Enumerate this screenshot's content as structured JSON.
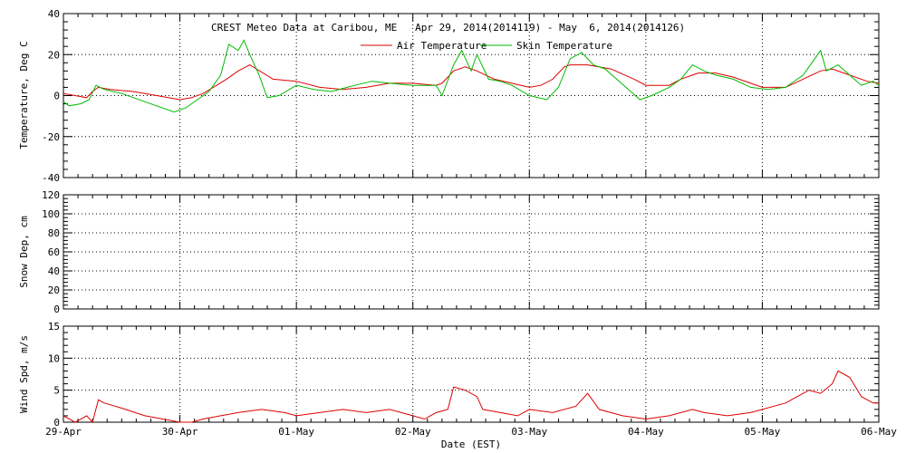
{
  "chart_data": [
    {
      "type": "line",
      "title": "CREST Meteo Data at Caribou, ME   Apr 29, 2014(2014119) - May  6, 2014(2014126)",
      "ylabel": "Temperature, Deg C",
      "ylim": [
        -40,
        40
      ],
      "yticks": [
        "-40",
        "-20",
        "0",
        "20",
        "40"
      ],
      "legend_position": "top-center",
      "colors": {
        "Air Temperature": "#dd0000",
        "Skin Temperature": "#00bb00"
      },
      "x_unit": "day offset from 29-Apr 00:00 EST",
      "series": [
        {
          "name": "Air Temperature",
          "x": [
            0,
            0.1,
            0.2,
            0.25,
            0.3,
            0.4,
            0.6,
            0.8,
            1.0,
            1.1,
            1.2,
            1.4,
            1.5,
            1.6,
            1.8,
            2.0,
            2.2,
            2.4,
            2.6,
            2.8,
            3.0,
            3.2,
            3.25,
            3.35,
            3.45,
            3.55,
            3.7,
            3.85,
            4.0,
            4.1,
            4.2,
            4.3,
            4.35,
            4.5,
            4.7,
            4.9,
            5.0,
            5.2,
            5.3,
            5.45,
            5.6,
            5.75,
            5.9,
            6.0,
            6.2,
            6.35,
            6.5,
            6.6,
            6.75,
            6.9,
            7.0
          ],
          "y": [
            1,
            0,
            -1,
            2,
            4,
            3,
            2,
            0,
            -2,
            -1,
            1,
            8,
            12,
            15,
            8,
            7,
            4,
            3,
            4,
            6,
            6,
            5,
            6,
            12,
            14,
            12,
            8,
            6,
            4,
            5,
            8,
            14,
            15,
            15,
            13,
            8,
            5,
            5,
            8,
            11,
            11,
            9,
            6,
            4,
            4,
            8,
            12,
            13,
            10,
            7,
            6
          ]
        },
        {
          "name": "Skin Temperature",
          "x": [
            0,
            0.05,
            0.15,
            0.22,
            0.28,
            0.35,
            0.5,
            0.7,
            0.95,
            1.05,
            1.15,
            1.25,
            1.35,
            1.42,
            1.5,
            1.55,
            1.6,
            1.68,
            1.75,
            1.85,
            2.0,
            2.15,
            2.3,
            2.5,
            2.65,
            2.8,
            3.0,
            3.2,
            3.25,
            3.35,
            3.42,
            3.5,
            3.55,
            3.65,
            3.75,
            3.85,
            4.0,
            4.15,
            4.25,
            4.35,
            4.45,
            4.55,
            4.65,
            4.75,
            4.95,
            5.05,
            5.2,
            5.3,
            5.4,
            5.5,
            5.6,
            5.75,
            5.9,
            6.05,
            6.2,
            6.35,
            6.45,
            6.5,
            6.55,
            6.65,
            6.75,
            6.85,
            6.95,
            7.0
          ],
          "y": [
            -3,
            -5,
            -4,
            -2,
            5,
            3,
            1,
            -3,
            -8,
            -6,
            -2,
            2,
            10,
            25,
            22,
            27,
            20,
            10,
            -1,
            0,
            5,
            3,
            2,
            5,
            7,
            6,
            5,
            5,
            0,
            15,
            22,
            12,
            20,
            8,
            7,
            5,
            0,
            -2,
            4,
            18,
            21,
            15,
            13,
            8,
            -2,
            0,
            4,
            8,
            15,
            12,
            10,
            8,
            4,
            3,
            4,
            10,
            18,
            22,
            12,
            15,
            10,
            5,
            7,
            5
          ]
        }
      ]
    },
    {
      "type": "line",
      "ylabel": "Snow Dep, cm",
      "ylim": [
        0,
        120
      ],
      "yticks": [
        "0",
        "20",
        "40",
        "60",
        "80",
        "100",
        "120"
      ],
      "series": []
    },
    {
      "type": "line",
      "ylabel": "Wind Spd, m/s",
      "xlabel": "Date (EST)",
      "ylim": [
        0,
        15
      ],
      "yticks": [
        "0",
        "5",
        "10",
        "15"
      ],
      "xticks": [
        "29-Apr",
        "30-Apr",
        "01-May",
        "02-May",
        "03-May",
        "04-May",
        "05-May",
        "06-May"
      ],
      "colors": {
        "Wind Speed": "#dd0000"
      },
      "series": [
        {
          "x": [
            0,
            0.1,
            0.2,
            0.25,
            0.3,
            0.35,
            0.5,
            0.7,
            1.0,
            1.1,
            1.2,
            1.35,
            1.5,
            1.7,
            1.9,
            2.0,
            2.2,
            2.4,
            2.6,
            2.8,
            3.0,
            3.1,
            3.2,
            3.3,
            3.35,
            3.45,
            3.55,
            3.6,
            3.75,
            3.9,
            4.0,
            4.2,
            4.4,
            4.5,
            4.6,
            4.8,
            5.0,
            5.2,
            5.4,
            5.5,
            5.7,
            5.9,
            6.0,
            6.1,
            6.2,
            6.3,
            6.4,
            6.5,
            6.6,
            6.65,
            6.75,
            6.85,
            6.95,
            7.0
          ],
          "y": [
            1,
            0,
            1,
            0,
            3.5,
            3,
            2.2,
            1,
            0,
            0,
            0.5,
            1,
            1.5,
            2,
            1.5,
            1,
            1.5,
            2,
            1.5,
            2,
            1,
            0.5,
            1.5,
            2,
            5.5,
            5,
            4,
            2,
            1.5,
            1,
            2,
            1.5,
            2.5,
            4.5,
            2,
            1,
            0.5,
            1,
            2,
            1.5,
            1,
            1.5,
            2,
            2.5,
            3,
            4,
            5,
            4.5,
            6,
            8,
            7,
            4,
            3,
            3
          ]
        }
      ]
    }
  ]
}
